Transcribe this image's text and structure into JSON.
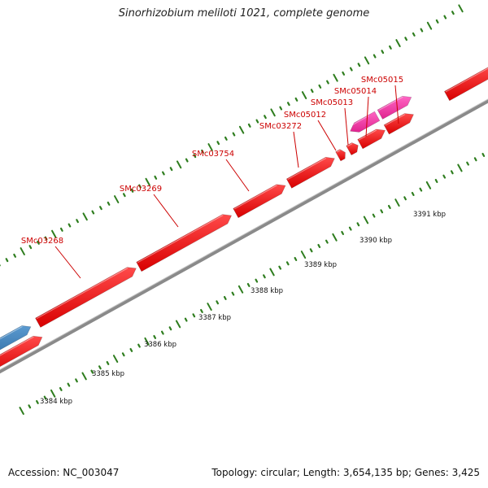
{
  "title": "Sinorhizobium meliloti 1021, complete genome",
  "footer": {
    "accession": "Accession: NC_003047",
    "summary": "Topology: circular; Length: 3,654,135 bp; Genes: 3,425"
  },
  "colors": {
    "backbone": "#8a8a8a",
    "tick": "#2e7d1e",
    "forward_gene": "#ee1111",
    "reverse_gene": "#ee1111",
    "highlight_gene": "#ee3fa8",
    "other_gene": "#3f7fb8",
    "gene_label": "#cc0000",
    "scale_label": "#111111"
  },
  "scale_labels": [
    "3384 kbp",
    "3385 kbp",
    "3386 kbp",
    "3387 kbp",
    "3388 kbp",
    "3389 kbp",
    "3390 kbp",
    "3391 kbp"
  ],
  "gene_labels": [
    "SMc03268",
    "SMc03269",
    "SMc03754",
    "SMc03272",
    "SMc05012",
    "SMc05013",
    "SMc05014",
    "SMc05015"
  ]
}
